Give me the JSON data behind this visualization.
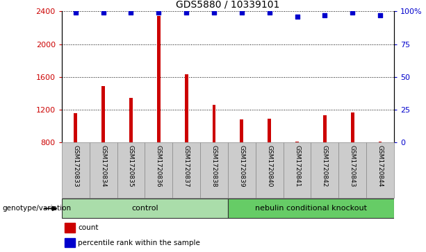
{
  "title": "GDS5880 / 10339101",
  "samples": [
    "GSM1720833",
    "GSM1720834",
    "GSM1720835",
    "GSM1720836",
    "GSM1720837",
    "GSM1720838",
    "GSM1720839",
    "GSM1720840",
    "GSM1720841",
    "GSM1720842",
    "GSM1720843",
    "GSM1720844"
  ],
  "counts": [
    1155,
    1490,
    1340,
    2340,
    1630,
    1260,
    1080,
    1090,
    810,
    1130,
    1165,
    810
  ],
  "percentiles": [
    99,
    99,
    99,
    99,
    99,
    99,
    99,
    99,
    96,
    97,
    99,
    97
  ],
  "ylim_left": [
    800,
    2400
  ],
  "ylim_right": [
    0,
    100
  ],
  "yticks_left": [
    800,
    1200,
    1600,
    2000,
    2400
  ],
  "yticks_right": [
    0,
    25,
    50,
    75,
    100
  ],
  "ytick_right_labels": [
    "0",
    "25",
    "50",
    "75",
    "100%"
  ],
  "bar_color": "#cc0000",
  "dot_color": "#0000cc",
  "grid_color": "#000000",
  "groups": [
    {
      "label": "control",
      "start": 0,
      "end": 5,
      "color": "#aaddaa"
    },
    {
      "label": "nebulin conditional knockout",
      "start": 6,
      "end": 11,
      "color": "#66cc66"
    }
  ],
  "group_row_label": "genotype/variation",
  "legend_items": [
    {
      "color": "#cc0000",
      "label": "count"
    },
    {
      "color": "#0000cc",
      "label": "percentile rank within the sample"
    }
  ],
  "sample_box_color": "#cccccc",
  "bar_width": 0.12
}
